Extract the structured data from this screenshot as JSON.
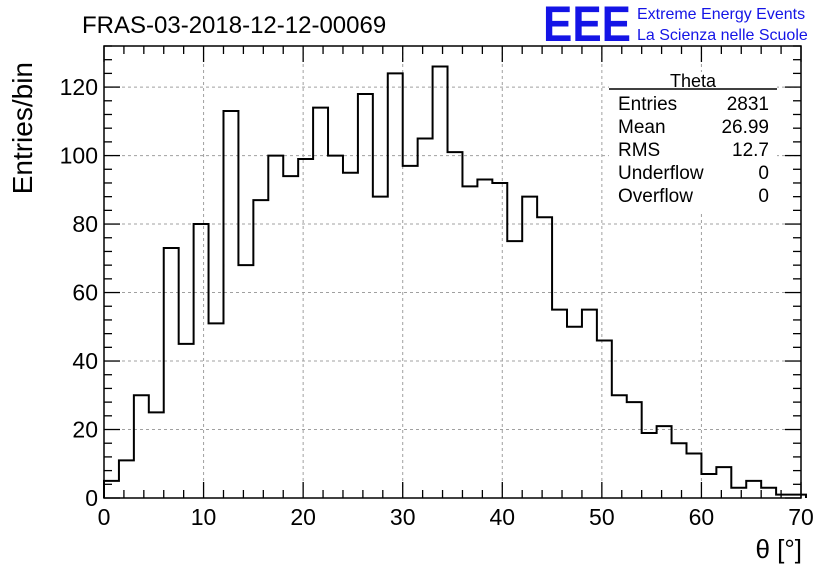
{
  "header": {
    "title": "FRAS-03-2018-12-12-00069",
    "logo_text": "EEE",
    "logo_line1": "Extreme Energy Events",
    "logo_line2": "La Scienza nelle Scuole",
    "logo_color": "#1414e6"
  },
  "stats": {
    "title": "Theta",
    "rows": [
      {
        "label": "Entries",
        "value": "2831"
      },
      {
        "label": "Mean",
        "value": "26.99"
      },
      {
        "label": "RMS",
        "value": "12.7"
      },
      {
        "label": "Underflow",
        "value": "0"
      },
      {
        "label": "Overflow",
        "value": "0"
      }
    ]
  },
  "chart_data": {
    "type": "bar",
    "style": "step-histogram",
    "xlabel": "θ [°]",
    "ylabel": "Entries/bin",
    "xlim": [
      0,
      70
    ],
    "ylim": [
      0,
      132
    ],
    "bin_width": 1.5,
    "bin_start": 0,
    "x_ticks": [
      0,
      10,
      20,
      30,
      40,
      50,
      60,
      70
    ],
    "y_ticks": [
      0,
      20,
      40,
      60,
      80,
      100,
      120
    ],
    "grid": true,
    "line_color": "#000000",
    "values": [
      5,
      11,
      30,
      25,
      73,
      45,
      80,
      51,
      113,
      68,
      87,
      100,
      94,
      99,
      114,
      100,
      95,
      118,
      88,
      124,
      97,
      105,
      126,
      101,
      91,
      93,
      92,
      75,
      88,
      82,
      55,
      50,
      55,
      46,
      30,
      28,
      19,
      21,
      16,
      13,
      7,
      9,
      3,
      5,
      3,
      1,
      1
    ]
  }
}
